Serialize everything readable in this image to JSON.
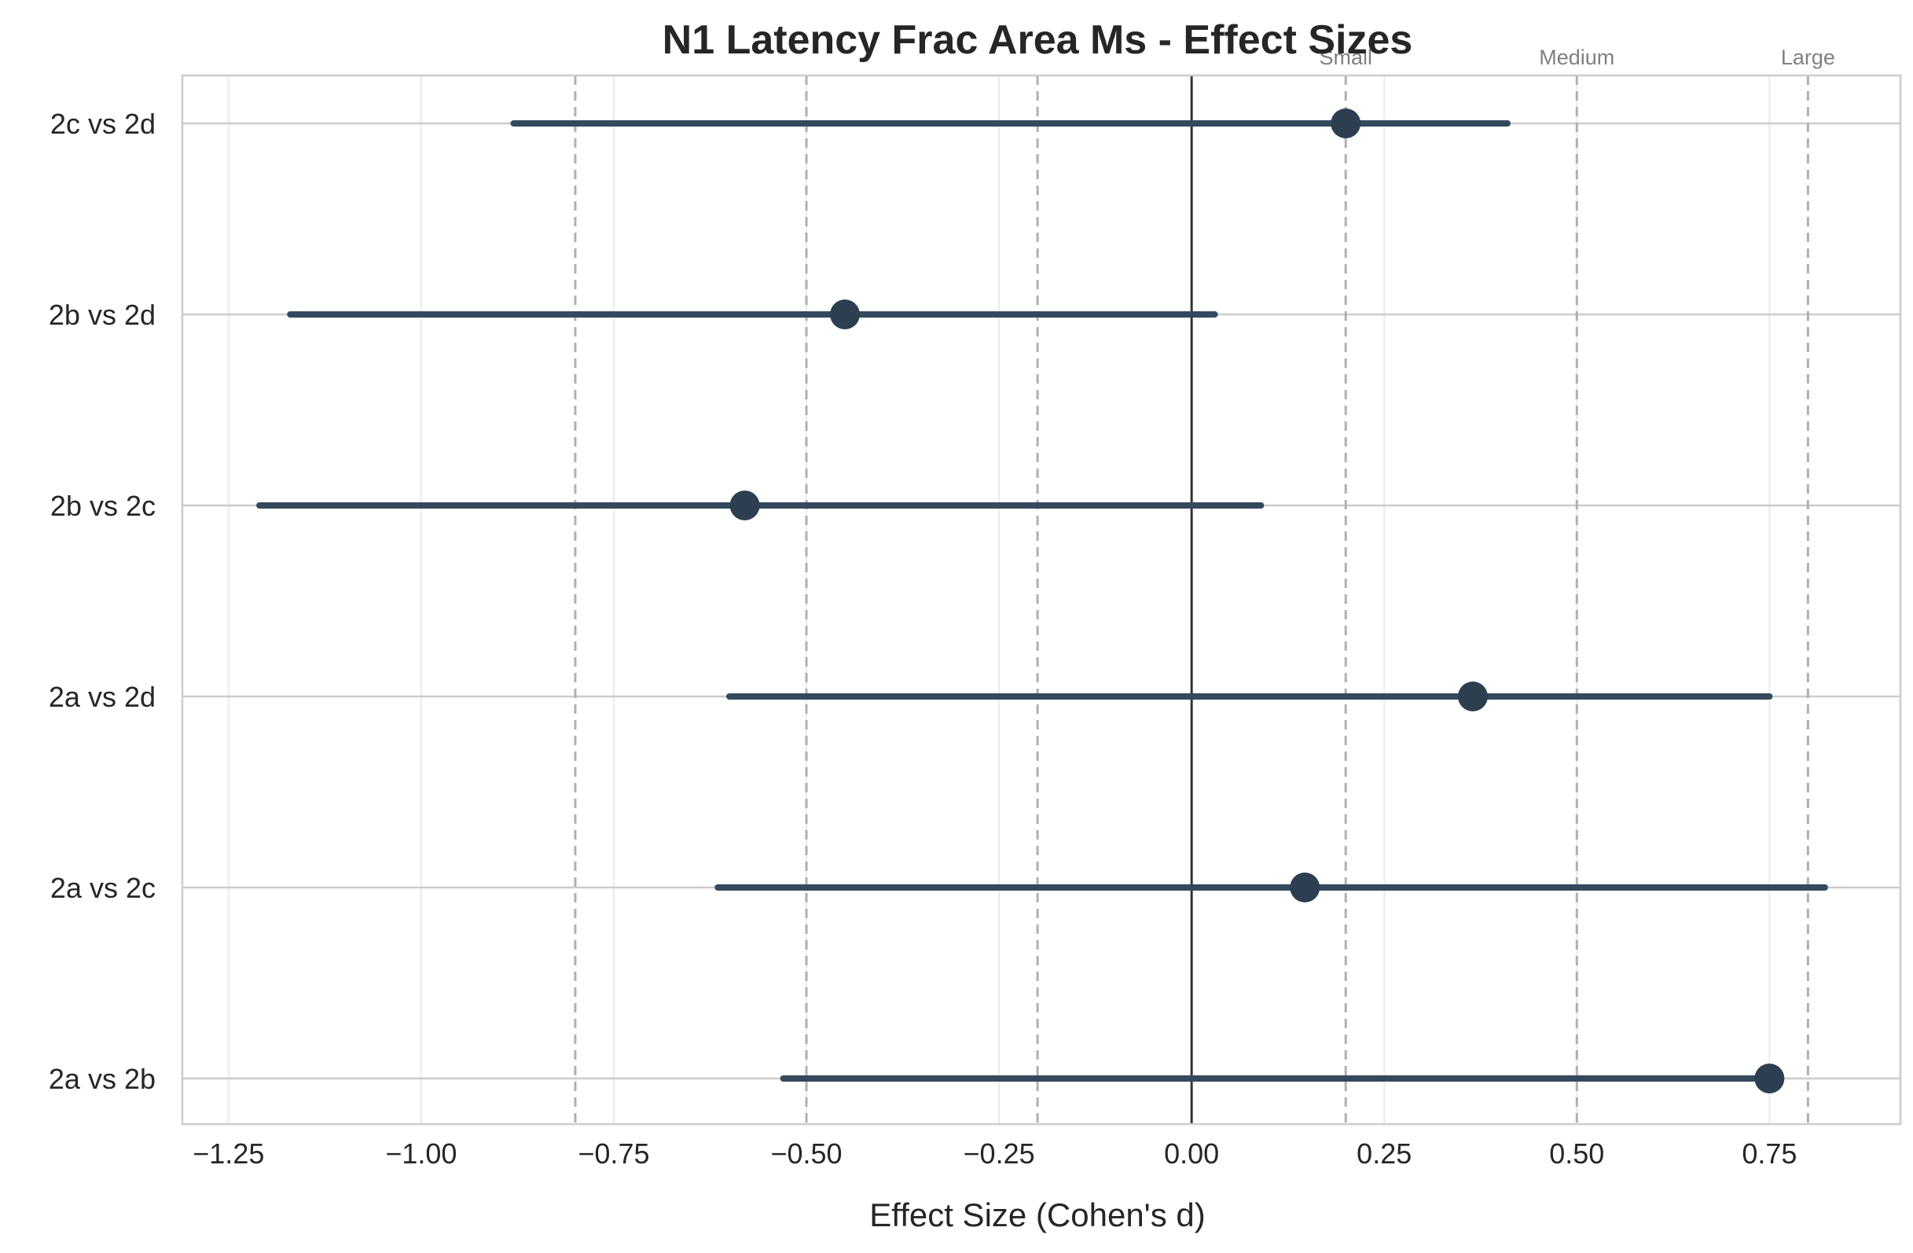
{
  "chart_data": {
    "type": "forest",
    "title": "N1 Latency Frac Area Ms - Effect Sizes",
    "xlabel": "Effect Size (Cohen's d)",
    "ylabel": "",
    "xlim": [
      -1.31,
      0.92
    ],
    "xticks": [
      -1.25,
      -1.0,
      -0.75,
      -0.5,
      -0.25,
      0.0,
      0.25,
      0.5,
      0.75
    ],
    "xtick_labels": [
      "−1.25",
      "−1.00",
      "−0.75",
      "−0.50",
      "−0.25",
      "0.00",
      "0.25",
      "0.50",
      "0.75"
    ],
    "grid": true,
    "zero_line": 0.0,
    "thresholds": [
      {
        "label": "Small",
        "value": 0.2
      },
      {
        "label": "Medium",
        "value": 0.5
      },
      {
        "label": "Large",
        "value": 0.8
      }
    ],
    "negative_thresholds": [
      -0.2,
      -0.5,
      -0.8
    ],
    "comparisons": [
      {
        "label": "2c vs 2d",
        "d": 0.2,
        "ci_low": -0.88,
        "ci_high": 0.41
      },
      {
        "label": "2b vs 2d",
        "d": -0.45,
        "ci_low": -1.17,
        "ci_high": 0.03
      },
      {
        "label": "2b vs 2c",
        "d": -0.58,
        "ci_low": -1.21,
        "ci_high": 0.09
      },
      {
        "label": "2a vs 2d",
        "d": 0.365,
        "ci_low": -0.6,
        "ci_high": 0.75
      },
      {
        "label": "2a vs 2c",
        "d": 0.147,
        "ci_low": -0.615,
        "ci_high": 0.822
      },
      {
        "label": "2a vs 2b",
        "d": 0.75,
        "ci_low": -0.53,
        "ci_high": null
      }
    ],
    "colors": {
      "point": "#2c3e50",
      "ci_line": "#34495e",
      "zero_line": "#333333",
      "threshold_line": "#b0b0b0",
      "grid": "#ebebeb",
      "category_grid": "#cccccc",
      "frame": "#cccccc"
    }
  }
}
